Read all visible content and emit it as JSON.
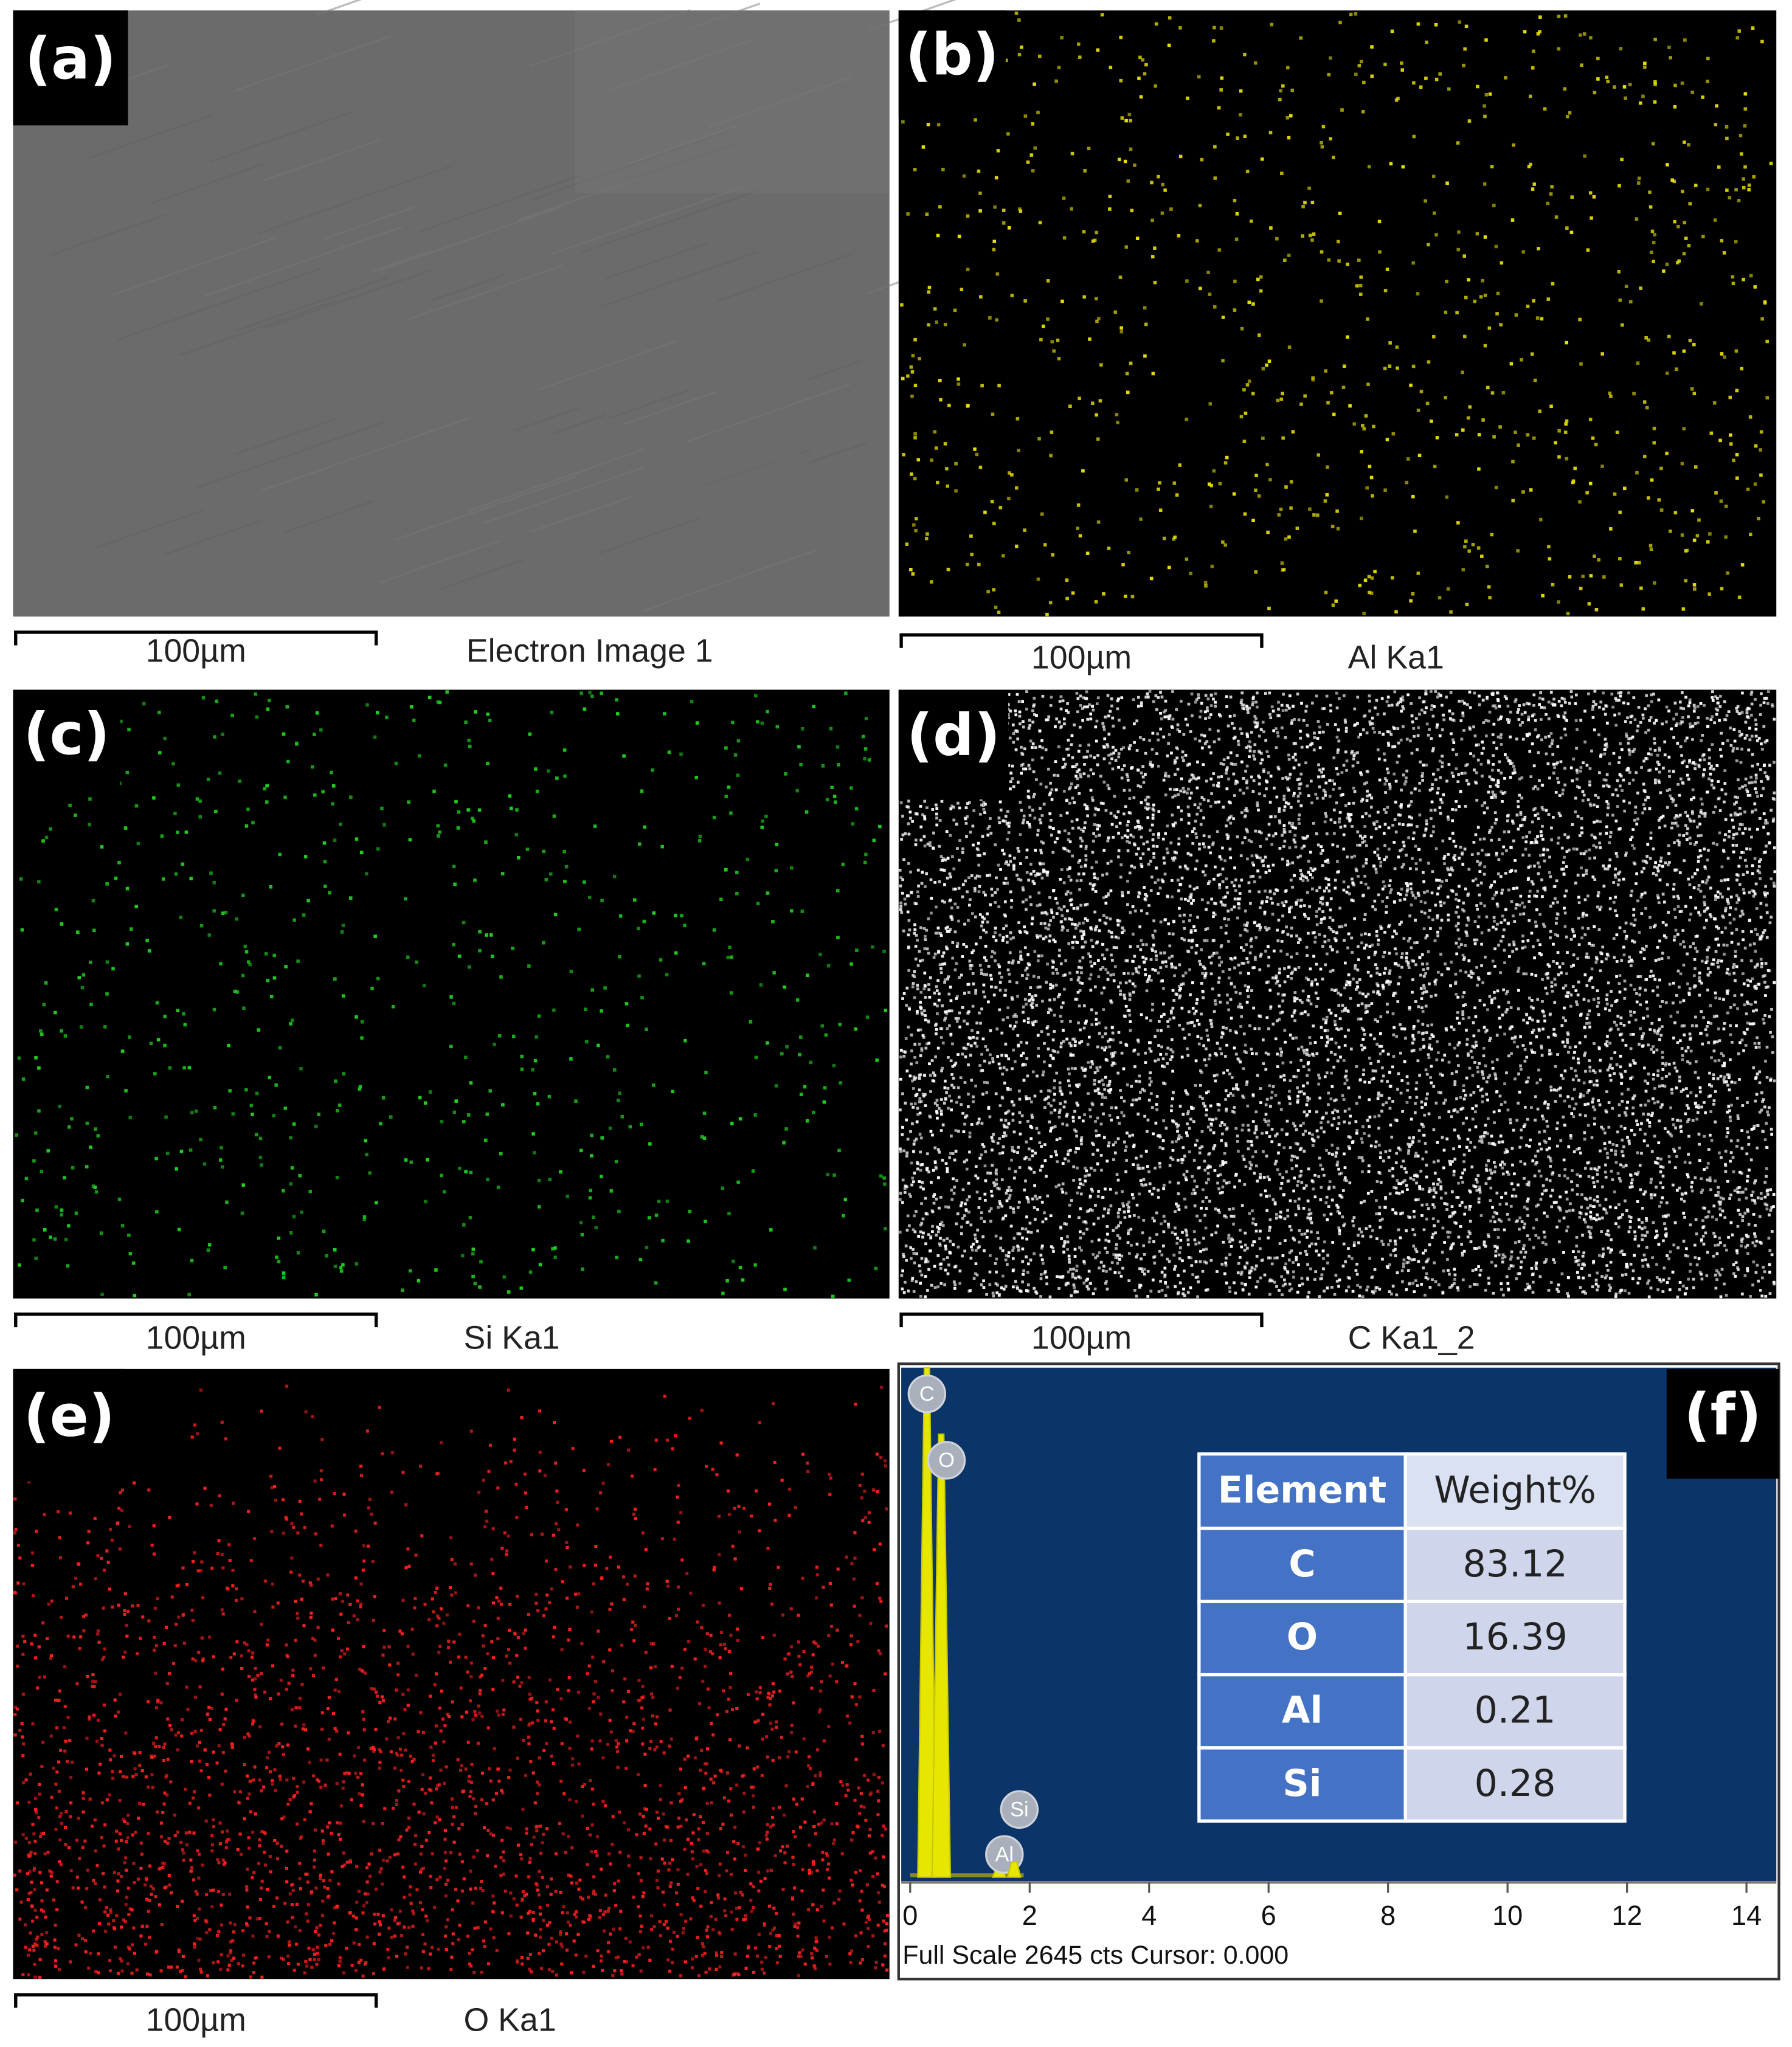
{
  "panels": [
    {
      "label": "(a)",
      "scale_bar": "100µm",
      "caption": "Electron Image 1"
    },
    {
      "label": "(b)",
      "scale_bar": "100µm",
      "caption": "Al Ka1"
    },
    {
      "label": "(c)",
      "scale_bar": "100µm",
      "caption": "Si Ka1"
    },
    {
      "label": "(d)",
      "scale_bar": "100µm",
      "caption": "C Ka1_2"
    },
    {
      "label": "(e)",
      "scale_bar": "100µm",
      "caption": "O Ka1"
    },
    {
      "label": "(f)"
    }
  ],
  "spectrum": {
    "xlim": [
      -0.15,
      14.5
    ],
    "xticks": [
      0,
      2,
      4,
      6,
      8,
      10,
      12,
      14
    ],
    "ylim": [
      0,
      2645
    ],
    "peaks": [
      {
        "label": "C",
        "x": 0.28,
        "counts": 2645
      },
      {
        "label": "O",
        "x": 0.52,
        "counts": 2300
      },
      {
        "label": "Al",
        "x": 1.49,
        "counts": 50
      },
      {
        "label": "Si",
        "x": 1.74,
        "counts": 80
      }
    ],
    "footer": "Full Scale 2645 cts Cursor: 0.000"
  },
  "table": {
    "header": [
      "Element",
      "Weight%"
    ],
    "rows": [
      [
        "C",
        83.12
      ],
      [
        "O",
        16.39
      ],
      [
        "Al",
        0.21
      ],
      [
        "Si",
        0.28
      ]
    ]
  }
}
